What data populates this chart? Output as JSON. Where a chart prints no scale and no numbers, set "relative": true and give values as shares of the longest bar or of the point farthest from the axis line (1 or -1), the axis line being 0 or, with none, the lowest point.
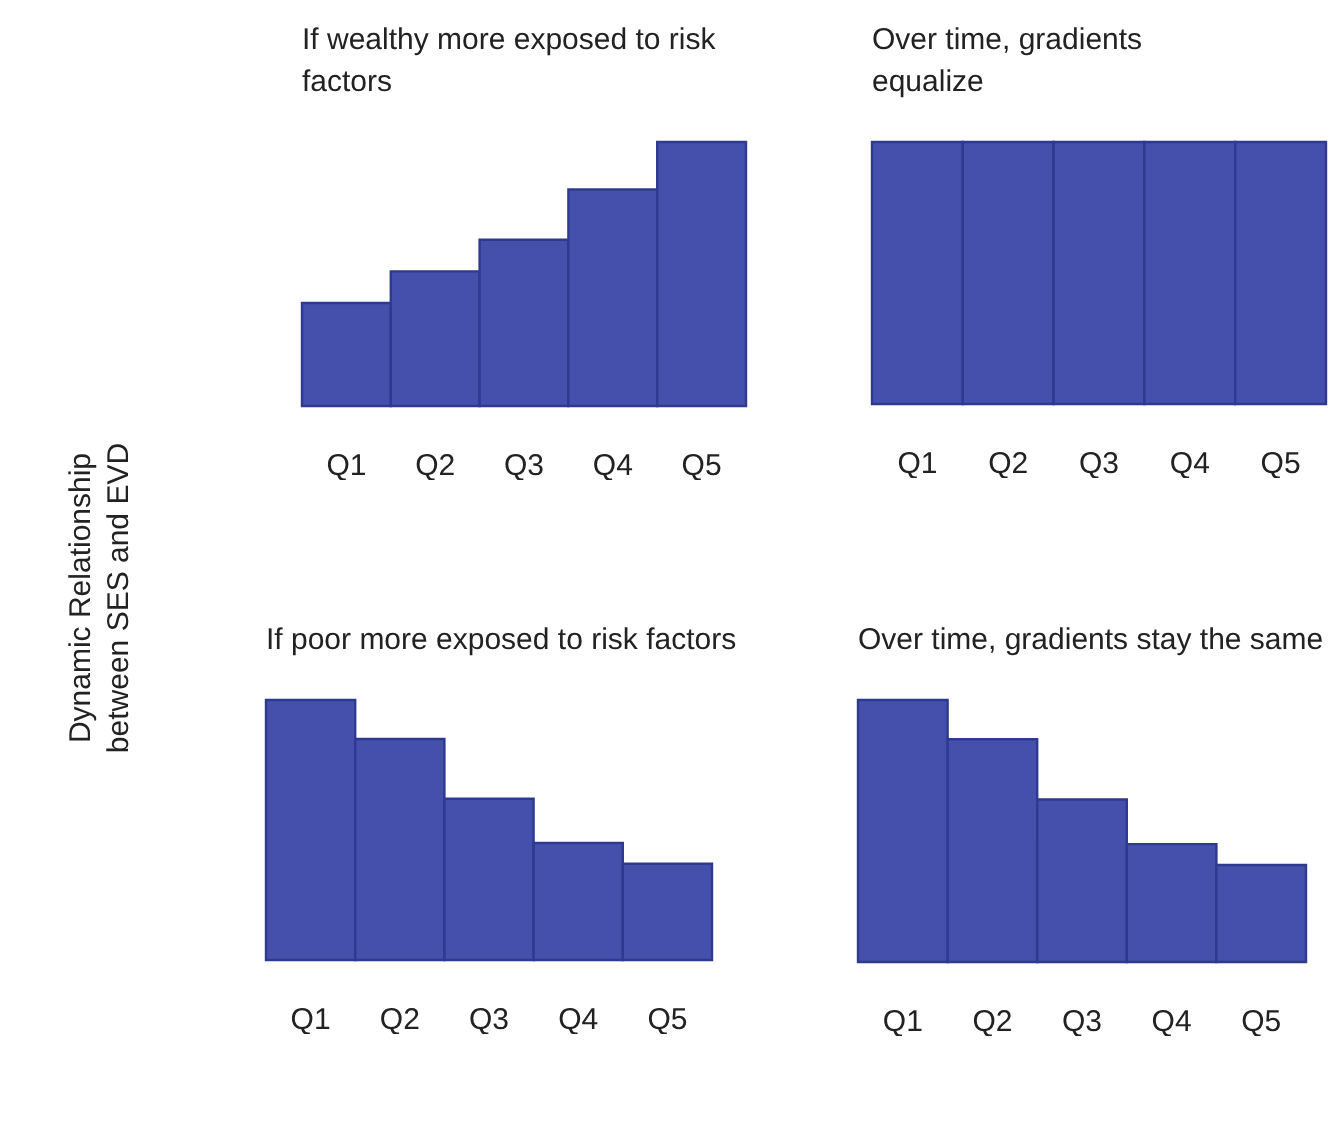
{
  "chart_data": [
    {
      "type": "other",
      "title": "Dynamic Relationship between SES and EVD"
    },
    {
      "type": "bar",
      "title": "If wealthy more exposed to risk factors",
      "categories": [
        "Q1",
        "Q2",
        "Q3",
        "Q4",
        "Q5"
      ],
      "values": [
        0.39,
        0.51,
        0.63,
        0.82,
        1
      ],
      "color": "#4450ab",
      "relative": true
    },
    {
      "type": "bar",
      "title": "Over time, gradients equalize",
      "categories": [
        "Q1",
        "Q2",
        "Q3",
        "Q4",
        "Q5"
      ],
      "values": [
        1,
        1,
        1,
        1,
        1
      ],
      "color": "#4450ab",
      "relative": true
    },
    {
      "type": "bar",
      "title": "If poor more exposed to risk factors",
      "categories": [
        "Q1",
        "Q2",
        "Q3",
        "Q4",
        "Q5"
      ],
      "values": [
        1,
        0.85,
        0.62,
        0.45,
        0.37
      ],
      "color": "#4450ab",
      "relative": true
    },
    {
      "type": "bar",
      "title": "Over time, gradients stay the same",
      "categories": [
        "Q1",
        "Q2",
        "Q3",
        "Q4",
        "Q5"
      ],
      "values": [
        1,
        0.85,
        0.62,
        0.45,
        0.37
      ],
      "color": "#4450ab",
      "relative": true
    }
  ]
}
